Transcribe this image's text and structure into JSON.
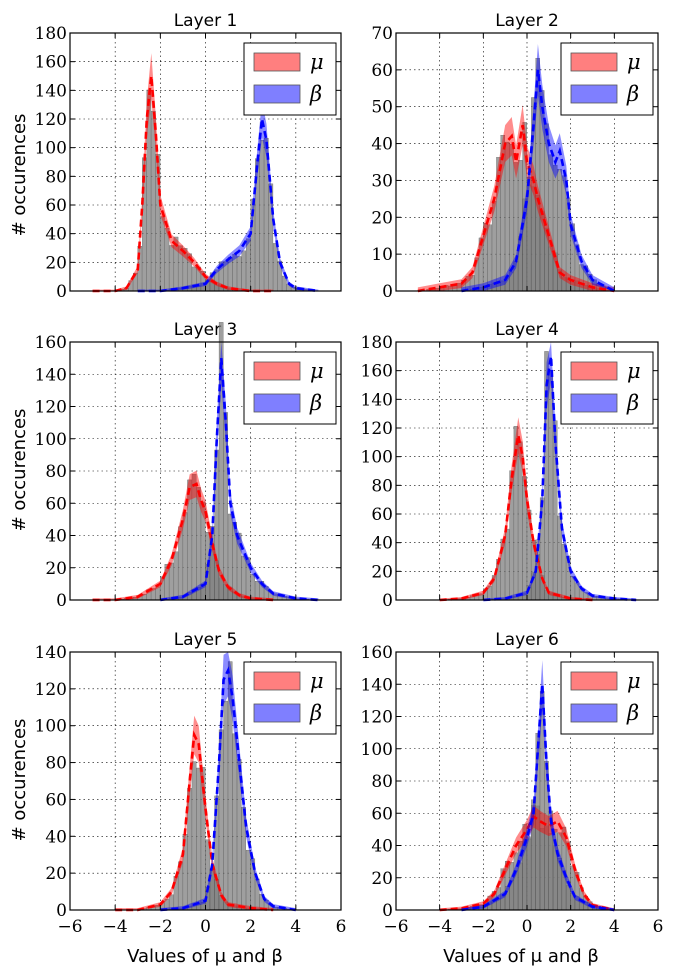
{
  "figure": {
    "xlabel": "Values of μ and β",
    "ylabel": "# occurences",
    "legend_labels": [
      "μ",
      "β"
    ]
  },
  "colors": {
    "mu": "#ff0000",
    "beta": "#0000ff",
    "hist": "#7f7f7f"
  },
  "chart_data": [
    {
      "type": "area",
      "title": "Layer 1",
      "xlim": [
        -6,
        6
      ],
      "ylim": [
        0,
        180
      ],
      "xticks": [
        -6,
        -4,
        -2,
        0,
        2,
        4,
        6
      ],
      "yticks": [
        0,
        20,
        40,
        60,
        80,
        100,
        120,
        140,
        160,
        180
      ],
      "grid": true,
      "legend": "top-right",
      "series": [
        {
          "name": "μ",
          "x": [
            -5,
            -4,
            -3.5,
            -3,
            -2.8,
            -2.6,
            -2.4,
            -2.2,
            -2,
            -1.5,
            -1,
            -0.5,
            0,
            0.5,
            1,
            2,
            3
          ],
          "y": [
            0,
            0,
            2,
            15,
            60,
            120,
            150,
            110,
            60,
            35,
            28,
            20,
            10,
            5,
            2,
            0,
            0
          ]
        },
        {
          "name": "β",
          "x": [
            -3,
            -2,
            -1,
            0,
            0.5,
            1,
            1.5,
            2,
            2.3,
            2.5,
            2.7,
            3,
            3.3,
            3.7,
            4,
            5
          ],
          "y": [
            0,
            0,
            2,
            5,
            15,
            22,
            28,
            40,
            90,
            120,
            105,
            50,
            20,
            5,
            2,
            0
          ]
        }
      ]
    },
    {
      "type": "area",
      "title": "Layer 2",
      "xlim": [
        -6,
        6
      ],
      "ylim": [
        0,
        70
      ],
      "xticks": [
        -6,
        -4,
        -2,
        0,
        2,
        4,
        6
      ],
      "yticks": [
        0,
        10,
        20,
        30,
        40,
        50,
        60,
        70
      ],
      "grid": true,
      "legend": "top-right",
      "series": [
        {
          "name": "μ",
          "x": [
            -5,
            -4,
            -3,
            -2.5,
            -2,
            -1.5,
            -1,
            -0.7,
            -0.5,
            -0.2,
            0,
            0.3,
            0.5,
            1,
            1.5,
            2,
            3,
            4
          ],
          "y": [
            0,
            1,
            2,
            5,
            15,
            25,
            40,
            42,
            35,
            45,
            35,
            30,
            25,
            15,
            5,
            3,
            1,
            0
          ]
        },
        {
          "name": "β",
          "x": [
            -3,
            -2,
            -1,
            -0.5,
            0,
            0.3,
            0.5,
            0.7,
            1,
            1.3,
            1.5,
            1.8,
            2,
            2.5,
            3,
            4
          ],
          "y": [
            0,
            1,
            3,
            8,
            25,
            45,
            60,
            50,
            40,
            35,
            38,
            30,
            18,
            8,
            3,
            0
          ]
        }
      ]
    },
    {
      "type": "area",
      "title": "Layer 3",
      "xlim": [
        -6,
        6
      ],
      "ylim": [
        0,
        160
      ],
      "xticks": [
        -6,
        -4,
        -2,
        0,
        2,
        4,
        6
      ],
      "yticks": [
        0,
        20,
        40,
        60,
        80,
        100,
        120,
        140,
        160
      ],
      "grid": true,
      "legend": "top-right",
      "series": [
        {
          "name": "μ",
          "x": [
            -5,
            -4,
            -3,
            -2,
            -1.5,
            -1,
            -0.7,
            -0.4,
            -0.2,
            0,
            0.3,
            0.6,
            1,
            1.5,
            2,
            3
          ],
          "y": [
            0,
            0,
            2,
            10,
            25,
            50,
            70,
            72,
            62,
            55,
            35,
            18,
            8,
            3,
            1,
            0
          ]
        },
        {
          "name": "β",
          "x": [
            -2,
            -1,
            0,
            0.3,
            0.5,
            0.7,
            0.9,
            1.1,
            1.4,
            1.7,
            2,
            2.5,
            3,
            4,
            5
          ],
          "y": [
            0,
            2,
            10,
            40,
            100,
            150,
            110,
            60,
            40,
            30,
            20,
            10,
            4,
            1,
            0
          ]
        }
      ]
    },
    {
      "type": "area",
      "title": "Layer 4",
      "xlim": [
        -6,
        6
      ],
      "ylim": [
        0,
        180
      ],
      "xticks": [
        -6,
        -4,
        -2,
        0,
        2,
        4,
        6
      ],
      "yticks": [
        0,
        20,
        40,
        60,
        80,
        100,
        120,
        140,
        160,
        180
      ],
      "grid": true,
      "legend": "top-right",
      "series": [
        {
          "name": "μ",
          "x": [
            -4,
            -3,
            -2,
            -1.5,
            -1,
            -0.7,
            -0.4,
            -0.2,
            0,
            0.3,
            0.7,
            1,
            2,
            3
          ],
          "y": [
            0,
            1,
            5,
            15,
            45,
            85,
            115,
            100,
            70,
            40,
            15,
            5,
            1,
            0
          ]
        },
        {
          "name": "β",
          "x": [
            -2,
            -1,
            0,
            0.4,
            0.7,
            0.9,
            1.1,
            1.3,
            1.6,
            2,
            2.5,
            3,
            4,
            5
          ],
          "y": [
            0,
            1,
            5,
            20,
            70,
            150,
            170,
            110,
            50,
            20,
            8,
            3,
            1,
            0
          ]
        }
      ]
    },
    {
      "type": "area",
      "title": "Layer 5",
      "xlim": [
        -6,
        6
      ],
      "ylim": [
        0,
        140
      ],
      "xticks": [
        -6,
        -4,
        -2,
        0,
        2,
        4,
        6
      ],
      "yticks": [
        0,
        20,
        40,
        60,
        80,
        100,
        120,
        140
      ],
      "grid": true,
      "legend": "top-right",
      "series": [
        {
          "name": "μ",
          "x": [
            -4,
            -3,
            -2,
            -1.5,
            -1,
            -0.7,
            -0.5,
            -0.3,
            0,
            0.3,
            0.7,
            1,
            2,
            3
          ],
          "y": [
            0,
            0,
            3,
            10,
            30,
            70,
            95,
            90,
            55,
            25,
            8,
            3,
            1,
            0
          ]
        },
        {
          "name": "β",
          "x": [
            -2,
            -1,
            0,
            0.3,
            0.6,
            0.8,
            1,
            1.2,
            1.5,
            1.8,
            2.2,
            2.6,
            3,
            4
          ],
          "y": [
            0,
            1,
            5,
            25,
            80,
            125,
            130,
            115,
            80,
            45,
            20,
            6,
            2,
            0
          ]
        }
      ]
    },
    {
      "type": "area",
      "title": "Layer 6",
      "xlim": [
        -6,
        6
      ],
      "ylim": [
        0,
        160
      ],
      "xticks": [
        -6,
        -4,
        -2,
        0,
        2,
        4,
        6
      ],
      "yticks": [
        0,
        20,
        40,
        60,
        80,
        100,
        120,
        140,
        160
      ],
      "grid": true,
      "legend": "top-right",
      "series": [
        {
          "name": "μ",
          "x": [
            -4,
            -3,
            -2,
            -1.5,
            -1,
            -0.5,
            0,
            0.3,
            0.6,
            1,
            1.4,
            1.8,
            2.2,
            2.6,
            3,
            4
          ],
          "y": [
            0,
            1,
            4,
            10,
            25,
            40,
            50,
            58,
            55,
            52,
            55,
            45,
            25,
            10,
            3,
            0
          ]
        },
        {
          "name": "β",
          "x": [
            -3,
            -2,
            -1,
            -0.5,
            0,
            0.3,
            0.5,
            0.7,
            0.9,
            1.1,
            1.4,
            1.8,
            2.2,
            3,
            4
          ],
          "y": [
            0,
            2,
            10,
            25,
            45,
            60,
            100,
            140,
            90,
            55,
            35,
            20,
            8,
            2,
            0
          ]
        }
      ]
    }
  ]
}
